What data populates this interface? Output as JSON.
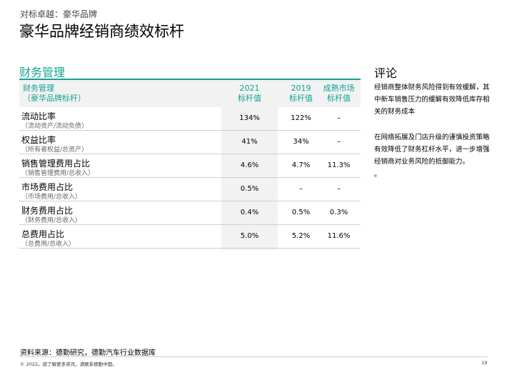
{
  "header": {
    "eyebrow": "对标卓越：豪华品牌",
    "title": "豪华品牌经销商绩效标杆"
  },
  "section": {
    "title": "财务管理"
  },
  "table": {
    "columns": [
      {
        "line1": "财务管理",
        "line2": "（豪华品牌标杆）"
      },
      {
        "line1": "2021",
        "line2": "标杆值"
      },
      {
        "line1": "2019",
        "line2": "标杆值"
      },
      {
        "line1": "成熟市场",
        "line2": "标杆值"
      }
    ],
    "rows": [
      {
        "name": "流动比率",
        "sub": "（流动资产/流动负债）",
        "values": [
          "134%",
          "122%",
          "–"
        ]
      },
      {
        "name": "权益比率",
        "sub": "（所有者权益/总资产）",
        "values": [
          "41%",
          "34%",
          "–"
        ]
      },
      {
        "name": "销售管理费用占比",
        "sub": "（销售管理费用/总收入）",
        "values": [
          "4.6%",
          "4.7%",
          "11.3%"
        ]
      },
      {
        "name": "市场费用占比",
        "sub": "（市场费用/总收入）",
        "values": [
          "0.5%",
          "–",
          "–"
        ]
      },
      {
        "name": "财务费用占比",
        "sub": "（财务费用/总收入）",
        "values": [
          "0.4%",
          "0.5%",
          "0.3%"
        ]
      },
      {
        "name": "总费用占比",
        "sub": "（总费用/总收入）",
        "values": [
          "5.0%",
          "5.2%",
          "11.6%"
        ]
      }
    ]
  },
  "commentary": {
    "title": "评论",
    "p1": "经销商整体财务风险得到有效缓解，其中新车销售压力的缓解有效降低库存相关的财务成本",
    "p2": "在网络拓展及门店升级的谨慎投资策略有效降低了财务杠杆水平，进一步增强经销商对业务风险的抵御能力。",
    "p3": "。"
  },
  "footer": {
    "source": "资料来源：德勤研究，德勤汽车行业数据库",
    "copyright": "© 2022。欲了解更多资讯，请联系德勤中国。",
    "page_number": "19"
  },
  "colors": {
    "accent": "#11a394",
    "shade": "#f2f2f2"
  }
}
